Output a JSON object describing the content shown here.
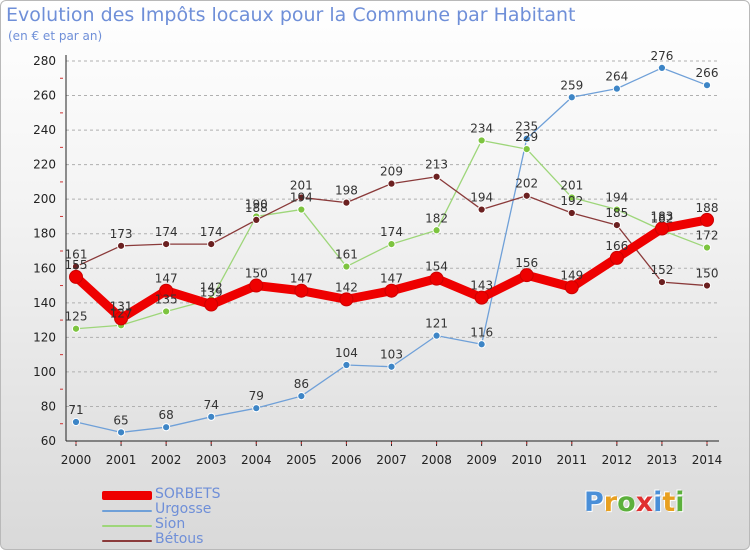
{
  "title": "Evolution des Impôts locaux pour la Commune par Habitant",
  "subtitle": "(en € et par an)",
  "logo": {
    "letters": [
      {
        "ch": "P",
        "color": "#4a8fd8"
      },
      {
        "ch": "r",
        "color": "#e8a020"
      },
      {
        "ch": "o",
        "color": "#5cb03c"
      },
      {
        "ch": "x",
        "color": "#e03030"
      },
      {
        "ch": "i",
        "color": "#4a8fd8"
      },
      {
        "ch": "t",
        "color": "#e8a020"
      },
      {
        "ch": "i",
        "color": "#5cb03c"
      }
    ]
  },
  "chart_data": {
    "type": "line",
    "title": "Evolution des Impôts locaux pour la Commune par Habitant",
    "subtitle": "(en € et par an)",
    "x": [
      "2000",
      "2001",
      "2002",
      "2003",
      "2004",
      "2005",
      "2006",
      "2007",
      "2008",
      "2009",
      "2010",
      "2011",
      "2012",
      "2013",
      "2014"
    ],
    "ylim": [
      60,
      280
    ],
    "yticks": [
      60,
      80,
      100,
      120,
      140,
      160,
      180,
      200,
      220,
      240,
      260,
      280
    ],
    "grid": "horizontal dashed",
    "legend": "bottom-left",
    "series": [
      {
        "name": "SORBETS",
        "color": "#ee0000",
        "thick": true,
        "values": [
          155,
          131,
          147,
          139,
          150,
          147,
          142,
          147,
          154,
          143,
          156,
          149,
          166,
          183,
          188
        ],
        "labels": [
          "155",
          "131",
          "147",
          "139",
          "150",
          "147",
          "142",
          "147",
          "154",
          "143",
          "156",
          "149",
          "166",
          "183",
          "188"
        ]
      },
      {
        "name": "Urgosse",
        "color": "#6fa0d8",
        "marker": "#3d85c6",
        "values": [
          71,
          65,
          68,
          74,
          79,
          86,
          104,
          103,
          121,
          116,
          235,
          259,
          264,
          276,
          266
        ],
        "labels": [
          "71",
          "65",
          "68",
          "74",
          "79",
          "86",
          "104",
          "103",
          "121",
          "116",
          "235",
          "259",
          "264",
          "276",
          "266"
        ]
      },
      {
        "name": "Sion",
        "color": "#9ed67a",
        "marker": "#7dc43f",
        "values": [
          125,
          127,
          135,
          142,
          190,
          194,
          161,
          174,
          182,
          234,
          229,
          201,
          194,
          182,
          172
        ],
        "labels": [
          "125",
          "127",
          "135",
          "142",
          "190",
          "194",
          "161",
          "174",
          "182",
          "234",
          "229",
          "201",
          "194",
          "182",
          "172"
        ]
      },
      {
        "name": "Bétous",
        "color": "#8a3a3a",
        "marker": "#6b2020",
        "values": [
          161,
          173,
          174,
          174,
          188,
          201,
          198,
          209,
          213,
          194,
          202,
          192,
          185,
          152,
          150
        ],
        "labels": [
          "161",
          "173",
          "174",
          "174",
          "188",
          "201",
          "198",
          "209",
          "213",
          "194",
          "202",
          "192",
          "185",
          "152",
          "150"
        ]
      }
    ]
  }
}
